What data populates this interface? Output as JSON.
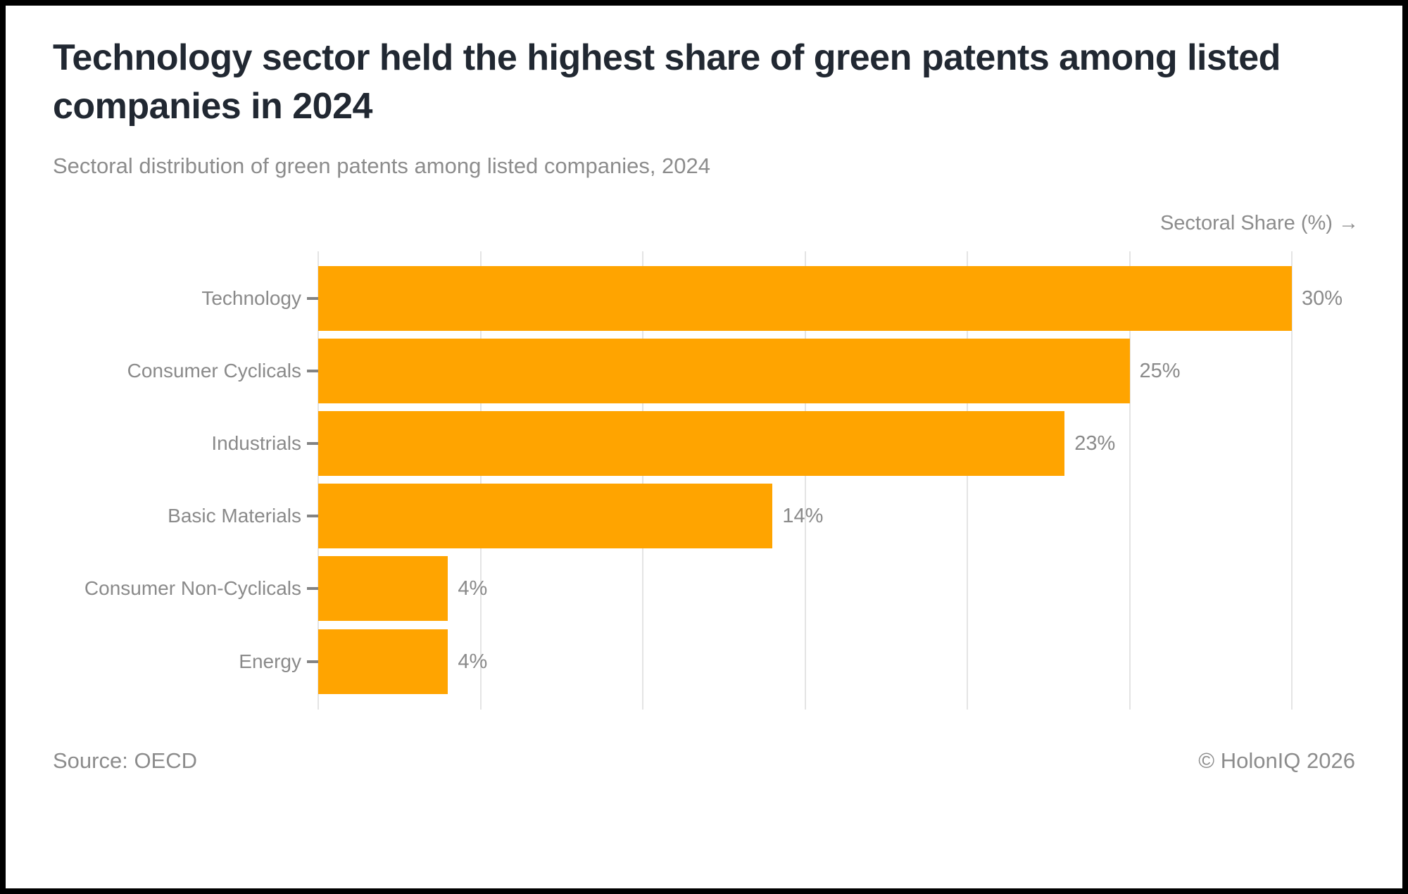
{
  "header": {
    "title": "Technology sector held the highest share of green patents among listed companies in 2024",
    "subtitle": "Sectoral distribution of green patents among listed companies, 2024"
  },
  "chart_data": {
    "type": "bar",
    "orientation": "horizontal",
    "axis_title": "Sectoral Share (%) →",
    "categories": [
      "Technology",
      "Consumer Cyclicals",
      "Industrials",
      "Basic Materials",
      "Consumer Non-Cyclicals",
      "Energy"
    ],
    "values": [
      30,
      25,
      23,
      14,
      4,
      4
    ],
    "value_labels": [
      "30%",
      "25%",
      "23%",
      "14%",
      "4%",
      "4%"
    ],
    "xlim": [
      0,
      30
    ],
    "gridline_step": 5,
    "grid": true,
    "legend": false,
    "x_tick_labels_shown": false,
    "colors": {
      "bar": "#ffa400",
      "gridline": "#e4e4e4",
      "tick": "#848484",
      "label": "#8a8a8a",
      "title": "#212832",
      "subtitle": "#8c8c8c",
      "background": "#ffffff",
      "frame": "#000000"
    }
  },
  "footer": {
    "source": "Source: OECD",
    "copyright": "© HolonIQ 2026"
  }
}
